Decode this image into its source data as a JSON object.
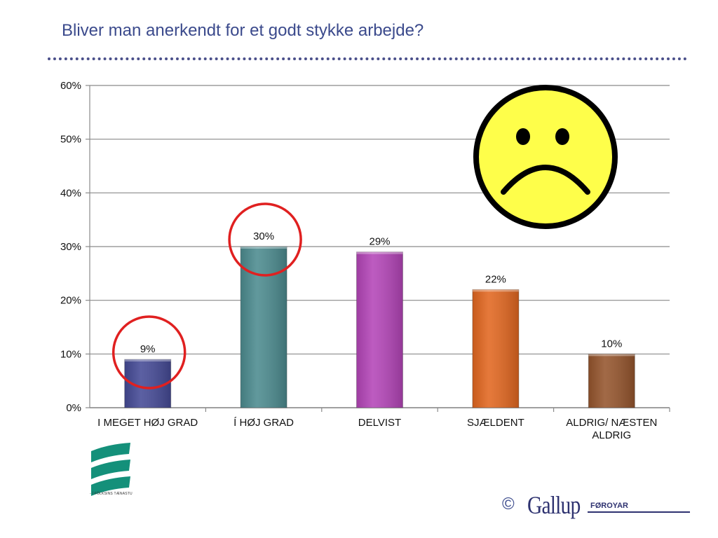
{
  "title": "Bliver man anerkendt for et godt stykke arbejde?",
  "chart_data": {
    "type": "bar",
    "categories": [
      "I MEGET HØJ GRAD",
      "Í HØJ GRAD",
      "DELVIST",
      "SJÆLDENT",
      "ALDRIG/ NÆSTEN ALDRIG"
    ],
    "category_lines": [
      [
        "I MEGET HØJ GRAD"
      ],
      [
        "Í HØJ GRAD"
      ],
      [
        "DELVIST"
      ],
      [
        "SJÆLDENT"
      ],
      [
        "ALDRIG/ NÆSTEN",
        "ALDRIG"
      ]
    ],
    "values": [
      9,
      30,
      29,
      22,
      10
    ],
    "data_labels": [
      "9%",
      "30%",
      "29%",
      "22%",
      "10%"
    ],
    "bar_colors": [
      "#454a96",
      "#4c8b8f",
      "#b445b8",
      "#e26720",
      "#95552d"
    ],
    "y_ticks": [
      "0%",
      "10%",
      "20%",
      "30%",
      "40%",
      "50%",
      "60%"
    ],
    "ylim": [
      0,
      60
    ],
    "grid": true,
    "highlighted_categories": [
      "I MEGET HØJ GRAD",
      "Í HØJ GRAD"
    ],
    "highlight_color": "#e02020"
  },
  "decorations": {
    "sad_face": {
      "icon": "sad-face-icon",
      "fill": "#fefe4a",
      "stroke": "#000000"
    }
  },
  "footer": {
    "logo_text": "- Í FÓLKSINS TÆNASTU",
    "copyright": "©",
    "brand": "Gallup",
    "brand_sub": "FØROYAR"
  }
}
